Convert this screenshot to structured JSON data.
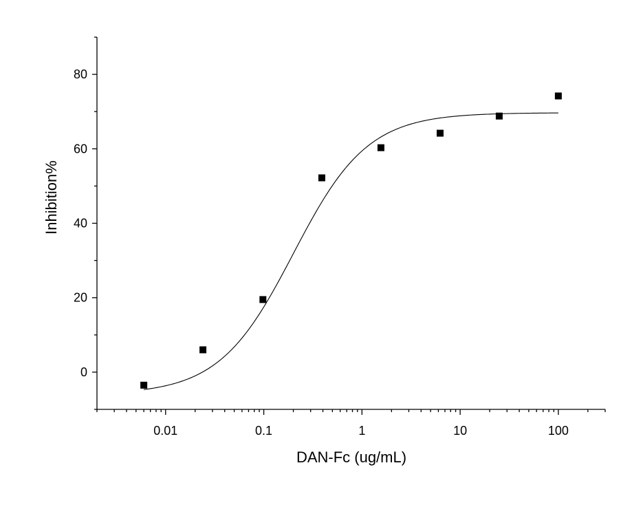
{
  "chart_data": {
    "type": "scatter",
    "title": "",
    "xlabel": "DAN-Fc (ug/mL)",
    "ylabel": "Inhibition%",
    "x_scale": "log",
    "xlim": [
      0.002,
      300
    ],
    "ylim": [
      -10,
      90
    ],
    "x_ticks": [
      0.01,
      0.1,
      1,
      10,
      100
    ],
    "x_tick_labels": [
      "0.01",
      "0.1",
      "1",
      "10",
      "100"
    ],
    "y_ticks": [
      0,
      20,
      40,
      60,
      80
    ],
    "y_tick_labels": [
      "0",
      "20",
      "40",
      "60",
      "80"
    ],
    "grid": false,
    "legend": "none",
    "marker_color": "#000000",
    "series": [
      {
        "marker": "square",
        "x": [
          0.006,
          0.024,
          0.098,
          0.39,
          1.56,
          6.25,
          25,
          100
        ],
        "y": [
          -3.5,
          6.0,
          19.5,
          52.2,
          60.3,
          64.2,
          68.8,
          74.2
        ]
      }
    ],
    "fit_curve": {
      "type": "4PL",
      "bottom": -6,
      "top": 69.7,
      "ec50": 0.2,
      "hill": 1.15,
      "x_range": [
        0.006,
        100
      ]
    }
  }
}
